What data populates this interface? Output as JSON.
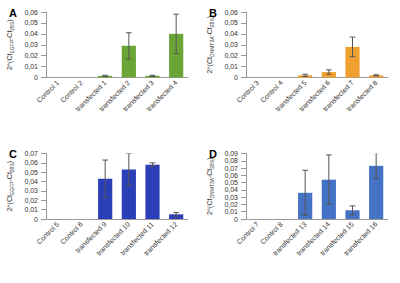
{
  "chart_data": [
    {
      "type": "bar",
      "title": "A",
      "ylabel": [
        "2^(Ct",
        "EGFP",
        "-Ct",
        "28S",
        ")"
      ],
      "categories": [
        "Control 1",
        "Control 2",
        "transfected 1",
        "transfected 2",
        "transfected 3",
        "transfected 4"
      ],
      "values": [
        0,
        0,
        0.0015,
        0.029,
        0.0015,
        0.04
      ],
      "errors": [
        null,
        null,
        0.0005,
        0.012,
        0.0005,
        0.018
      ],
      "color": "#6aa535",
      "grid": false,
      "ylim": [
        0,
        0.06
      ],
      "yticks": [
        0,
        {
          "value": 0.01,
          "label": "0,01"
        },
        {
          "value": 0.02,
          "label": "0,02"
        },
        {
          "value": 0.03,
          "label": "0,03"
        },
        {
          "value": 0.04,
          "label": "0,04"
        },
        {
          "value": 0.05,
          "label": "0,05"
        },
        {
          "value": 0.06,
          "label": "0,06"
        }
      ]
    },
    {
      "type": "bar",
      "title": "B",
      "ylabel": [
        "2^(Ct",
        "DNMT3A",
        "-Ct",
        "28S",
        ")"
      ],
      "categories": [
        "Control 3",
        "Control 4",
        "transfected 5",
        "transfected 6",
        "transfected 7",
        "transfected 8"
      ],
      "values": [
        0,
        0,
        0.002,
        0.005,
        0.028,
        0.002
      ],
      "errors": [
        null,
        null,
        0.001,
        0.002,
        0.009,
        0.0005
      ],
      "color": "#f0a030",
      "grid": false,
      "ylim": [
        0,
        0.06
      ],
      "yticks": [
        0,
        {
          "value": 0.01,
          "label": "0,01"
        },
        {
          "value": 0.02,
          "label": "0,02"
        },
        {
          "value": 0.03,
          "label": "0,03"
        },
        {
          "value": 0.04,
          "label": "0,04"
        },
        {
          "value": 0.05,
          "label": "0,05"
        },
        {
          "value": 0.06,
          "label": "0,06"
        }
      ]
    },
    {
      "type": "bar",
      "title": "C",
      "ylabel": [
        "2^(Ct",
        "EGFP",
        "-Ct",
        "28S",
        ")"
      ],
      "categories": [
        "Control 5",
        "Control 6",
        "transfected 9",
        "transfected 10",
        "transfected 11",
        "transfected 12"
      ],
      "values": [
        0,
        0,
        0.043,
        0.053,
        0.058,
        0.005
      ],
      "errors": [
        null,
        null,
        0.02,
        0.017,
        0.002,
        0.002
      ],
      "color": "#2a3eb8",
      "grid": false,
      "ylim": [
        0,
        0.07
      ],
      "yticks": [
        0,
        {
          "value": 0.01,
          "label": "0,01"
        },
        {
          "value": 0.02,
          "label": "0,02"
        },
        {
          "value": 0.03,
          "label": "0,03"
        },
        {
          "value": 0.04,
          "label": "0,04"
        },
        {
          "value": 0.05,
          "label": "0,05"
        },
        {
          "value": 0.06,
          "label": "0,06"
        },
        {
          "value": 0.07,
          "label": "0,07"
        }
      ]
    },
    {
      "type": "bar",
      "title": "D",
      "ylabel": [
        "2^(Ct",
        "DNMT3A",
        "-Ct",
        "28S",
        ")"
      ],
      "categories": [
        "Control 7",
        "Control 8",
        "transfected 13",
        "transfected 14",
        "transfected 15",
        "transfected 16"
      ],
      "values": [
        0,
        0,
        0.036,
        0.054,
        0.012,
        0.073
      ],
      "errors": [
        null,
        null,
        0.031,
        0.034,
        0.006,
        0.018
      ],
      "color": "#4472c4",
      "grid": false,
      "ylim": [
        0,
        0.09
      ],
      "yticks": [
        0,
        {
          "value": 0.01,
          "label": "0,01"
        },
        {
          "value": 0.02,
          "label": "0,02"
        },
        {
          "value": 0.03,
          "label": "0,03"
        },
        {
          "value": 0.04,
          "label": "0,04"
        },
        {
          "value": 0.05,
          "label": "0,05"
        },
        {
          "value": 0.06,
          "label": "0,06"
        },
        {
          "value": 0.07,
          "label": "0,07"
        },
        {
          "value": 0.08,
          "label": "0,08"
        },
        {
          "value": 0.09,
          "label": "0,09"
        }
      ]
    }
  ]
}
